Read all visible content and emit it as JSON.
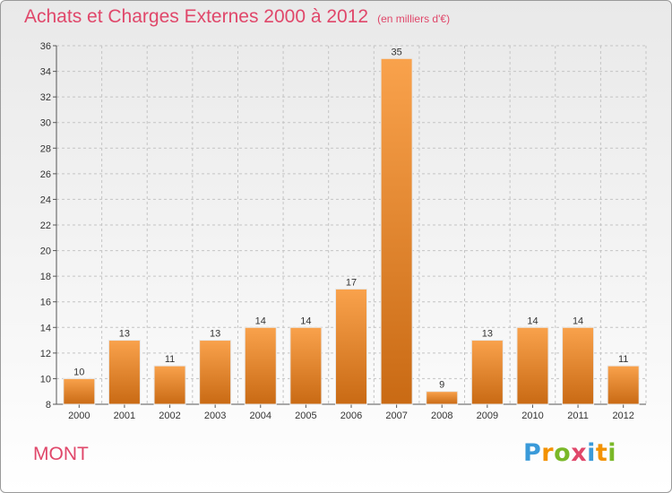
{
  "title": "Achats et Charges Externes 2000 à 2012",
  "subtitle": "(en milliers d'€)",
  "place": "MONT",
  "logo": {
    "letters": [
      "P",
      "r",
      "o",
      "x",
      "i",
      "t",
      "i"
    ],
    "colors": [
      "#3a9ad9",
      "#f39200",
      "#7ab828",
      "#e0476a",
      "#3a9ad9",
      "#f39200",
      "#7ab828"
    ]
  },
  "chart_data": {
    "type": "bar",
    "categories": [
      "2000",
      "2001",
      "2002",
      "2003",
      "2004",
      "2005",
      "2006",
      "2007",
      "2008",
      "2009",
      "2010",
      "2011",
      "2012"
    ],
    "values": [
      10,
      13,
      11,
      13,
      14,
      14,
      17,
      35,
      9,
      13,
      14,
      14,
      11
    ],
    "ylim": [
      8,
      36
    ],
    "yticks": [
      8,
      10,
      12,
      14,
      16,
      18,
      20,
      22,
      24,
      26,
      28,
      30,
      32,
      34,
      36
    ],
    "grid": true,
    "bar_color": "#f08a24"
  }
}
